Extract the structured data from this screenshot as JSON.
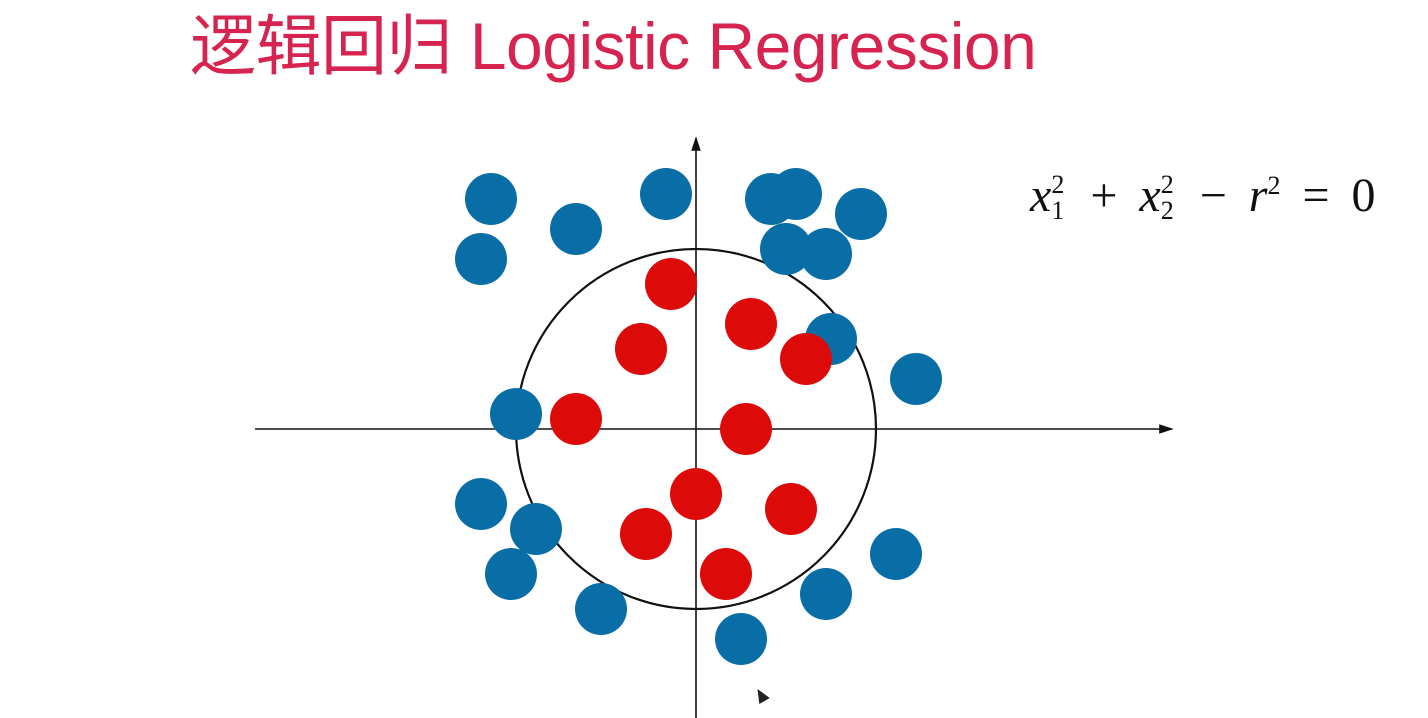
{
  "title": {
    "text": "逻辑回归 Logistic Regression",
    "color": "#d6234f"
  },
  "equation": {
    "x_var": "x",
    "sub1": "1",
    "sub2": "2",
    "sup": "2",
    "plus": "+",
    "minus": "−",
    "r_var": "r",
    "equals": "=",
    "rhs": "0"
  },
  "colors": {
    "class_outside": "#0a6ea6",
    "class_inside": "#dd0a0a",
    "axes": "#111111",
    "boundary": "#111111"
  },
  "chart_data": {
    "type": "scatter",
    "boundary": {
      "shape": "circle",
      "center": [
        0,
        0
      ],
      "radius": 3.6
    },
    "series": [
      {
        "class": "outside",
        "points": [
          [
            -4.1,
            4.6
          ],
          [
            -0.6,
            4.7
          ],
          [
            1.5,
            4.6
          ],
          [
            3.3,
            4.3
          ],
          [
            2.0,
            4.7
          ],
          [
            2.6,
            3.5
          ],
          [
            1.8,
            3.6
          ],
          [
            -2.4,
            4.0
          ],
          [
            -4.3,
            3.4
          ],
          [
            2.7,
            1.8
          ],
          [
            4.4,
            1.0
          ],
          [
            -3.6,
            0.3
          ],
          [
            -4.3,
            -1.5
          ],
          [
            -3.2,
            -2.0
          ],
          [
            4.0,
            -2.5
          ],
          [
            -3.7,
            -2.9
          ],
          [
            -1.9,
            -3.6
          ],
          [
            0.9,
            -4.2
          ],
          [
            2.6,
            -3.3
          ]
        ]
      },
      {
        "class": "inside",
        "points": [
          [
            -0.5,
            2.9
          ],
          [
            1.1,
            2.1
          ],
          [
            -1.1,
            1.6
          ],
          [
            2.2,
            1.4
          ],
          [
            -2.4,
            0.2
          ],
          [
            1.0,
            0.0
          ],
          [
            0.0,
            -1.3
          ],
          [
            1.9,
            -1.6
          ],
          [
            -1.0,
            -2.1
          ],
          [
            0.6,
            -2.9
          ]
        ]
      }
    ]
  }
}
